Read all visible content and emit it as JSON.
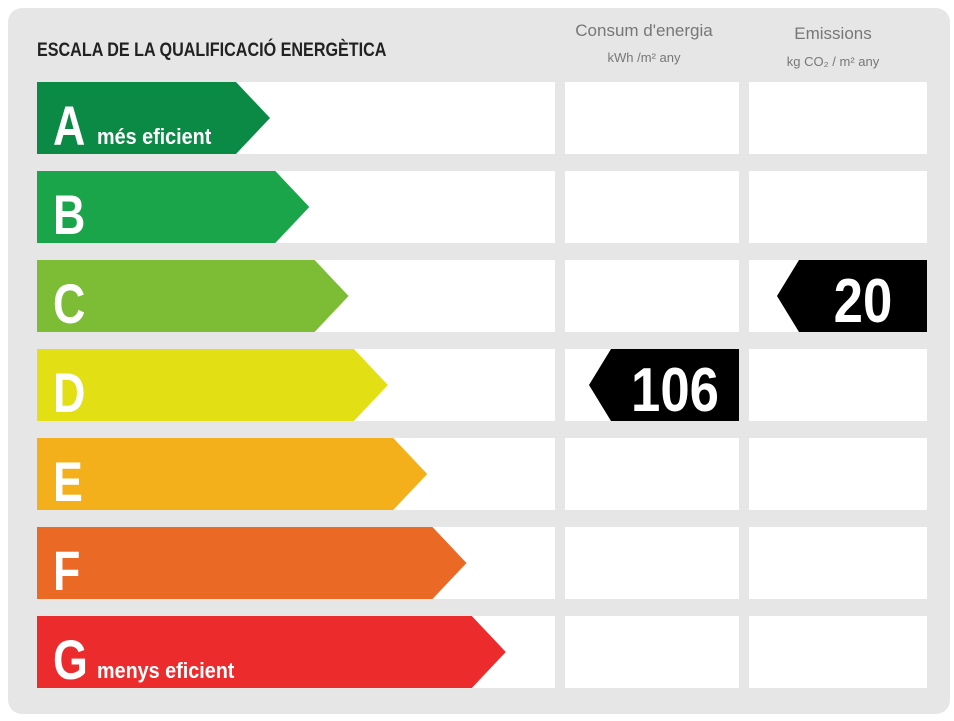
{
  "title": "ESCALA DE LA QUALIFICACIÓ ENERGÈTICA",
  "columns": [
    {
      "title": "Consum d'energia",
      "unit": "kWh /m² any"
    },
    {
      "title": "Emissions",
      "unit": "kg CO₂ / m² any"
    }
  ],
  "grades": [
    {
      "letter": "A",
      "note": "més eficient",
      "color": "#0b8a45"
    },
    {
      "letter": "B",
      "color": "#1aa54a"
    },
    {
      "letter": "C",
      "color": "#7dbd36"
    },
    {
      "letter": "D",
      "color": "#e2e014"
    },
    {
      "letter": "E",
      "color": "#f4b01b"
    },
    {
      "letter": "F",
      "color": "#ea6a25"
    },
    {
      "letter": "G",
      "note": "menys eficient",
      "color": "#ec2b2d"
    }
  ],
  "ratings": [
    {
      "grade": "D",
      "value": 106
    },
    {
      "grade": "C",
      "value": 20
    }
  ]
}
